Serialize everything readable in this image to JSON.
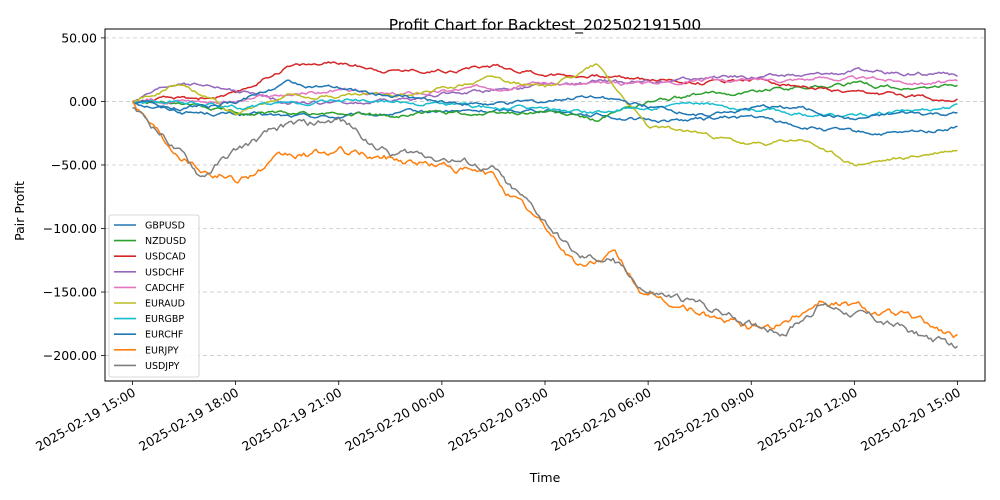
{
  "chart_data": {
    "type": "line",
    "title": "Profit Chart for Backtest_202502191500",
    "xlabel": "Time",
    "ylabel": "Pair Profit",
    "x_start": "2025-02-19 15:00",
    "x_end": "2025-02-20 15:00",
    "xlim": [
      "2025-02-19 14:12",
      "2025-02-20 15:48"
    ],
    "ylim": [
      -220,
      57
    ],
    "x_ticks": [
      "2025-02-19 15:00",
      "2025-02-19 18:00",
      "2025-02-19 21:00",
      "2025-02-20 00:00",
      "2025-02-20 03:00",
      "2025-02-20 06:00",
      "2025-02-20 09:00",
      "2025-02-20 12:00",
      "2025-02-20 15:00"
    ],
    "x_tick_labels": [
      "2025-02-19 15:00",
      "2025-02-19 18:00",
      "2025-02-19 21:00",
      "2025-02-20 00:00",
      "2025-02-20 03:00",
      "2025-02-20 06:00",
      "2025-02-20 09:00",
      "2025-02-20 12:00",
      "2025-02-20 15:00"
    ],
    "y_ticks": [
      50,
      0,
      -50,
      -100,
      -150,
      -200
    ],
    "y_tick_labels": [
      "50.00",
      "0.00",
      "−50.00",
      "−100.00",
      "−150.00",
      "−200.00"
    ],
    "grid": "horizontal dashed",
    "legend_position": "center-left",
    "series": [
      {
        "name": "GBPUSD",
        "color": "#1f77b4",
        "x": [
          "2025-02-19 15:00",
          "2025-02-19 16:30",
          "2025-02-19 18:00",
          "2025-02-19 19:30",
          "2025-02-19 21:00",
          "2025-02-19 22:30",
          "2025-02-20 00:00",
          "2025-02-20 01:30",
          "2025-02-20 03:00",
          "2025-02-20 04:30",
          "2025-02-20 06:00",
          "2025-02-20 07:30",
          "2025-02-20 09:00",
          "2025-02-20 10:30",
          "2025-02-20 12:00",
          "2025-02-20 13:30",
          "2025-02-20 15:00"
        ],
        "values": [
          0,
          -8,
          -10,
          -12,
          -12,
          -10,
          -8,
          -8,
          -6,
          -10,
          -15,
          -14,
          -12,
          -20,
          -25,
          -26,
          -20
        ]
      },
      {
        "name": "NZDUSD",
        "color": "#2ca02c",
        "x": [
          "2025-02-19 15:00",
          "2025-02-19 16:30",
          "2025-02-19 18:00",
          "2025-02-19 19:30",
          "2025-02-19 21:00",
          "2025-02-19 22:30",
          "2025-02-20 00:00",
          "2025-02-20 01:30",
          "2025-02-20 03:00",
          "2025-02-20 04:30",
          "2025-02-20 06:00",
          "2025-02-20 07:30",
          "2025-02-20 09:00",
          "2025-02-20 10:30",
          "2025-02-20 12:00",
          "2025-02-20 13:30",
          "2025-02-20 15:00"
        ],
        "values": [
          0,
          -4,
          -8,
          -10,
          -10,
          -12,
          -8,
          -10,
          -8,
          -15,
          0,
          5,
          8,
          12,
          14,
          10,
          12
        ]
      },
      {
        "name": "USDCAD",
        "color": "#d62728",
        "x": [
          "2025-02-19 15:00",
          "2025-02-19 16:30",
          "2025-02-19 18:00",
          "2025-02-19 19:30",
          "2025-02-19 21:00",
          "2025-02-19 22:30",
          "2025-02-20 00:00",
          "2025-02-20 01:30",
          "2025-02-20 03:00",
          "2025-02-20 04:30",
          "2025-02-20 06:00",
          "2025-02-20 07:30",
          "2025-02-20 09:00",
          "2025-02-20 10:30",
          "2025-02-20 12:00",
          "2025-02-20 13:30",
          "2025-02-20 15:00"
        ],
        "values": [
          0,
          2,
          5,
          28,
          30,
          25,
          25,
          28,
          22,
          20,
          18,
          15,
          18,
          12,
          5,
          5,
          2
        ]
      },
      {
        "name": "USDCHF",
        "color": "#9467bd",
        "x": [
          "2025-02-19 15:00",
          "2025-02-19 16:30",
          "2025-02-19 18:00",
          "2025-02-19 19:30",
          "2025-02-19 21:00",
          "2025-02-19 22:30",
          "2025-02-20 00:00",
          "2025-02-20 01:30",
          "2025-02-20 03:00",
          "2025-02-20 04:30",
          "2025-02-20 06:00",
          "2025-02-20 07:30",
          "2025-02-20 09:00",
          "2025-02-20 10:30",
          "2025-02-20 12:00",
          "2025-02-20 13:30",
          "2025-02-20 15:00"
        ],
        "values": [
          0,
          15,
          8,
          0,
          -2,
          0,
          5,
          10,
          12,
          15,
          15,
          18,
          20,
          20,
          24,
          22,
          20
        ]
      },
      {
        "name": "CADCHF",
        "color": "#e377c2",
        "x": [
          "2025-02-19 15:00",
          "2025-02-19 16:30",
          "2025-02-19 18:00",
          "2025-02-19 19:30",
          "2025-02-19 21:00",
          "2025-02-19 22:30",
          "2025-02-20 00:00",
          "2025-02-20 01:30",
          "2025-02-20 03:00",
          "2025-02-20 04:30",
          "2025-02-20 06:00",
          "2025-02-20 07:30",
          "2025-02-20 09:00",
          "2025-02-20 10:30",
          "2025-02-20 12:00",
          "2025-02-20 13:30",
          "2025-02-20 15:00"
        ],
        "values": [
          0,
          2,
          0,
          5,
          8,
          5,
          8,
          12,
          15,
          12,
          15,
          18,
          16,
          18,
          18,
          16,
          15
        ]
      },
      {
        "name": "EURAUD",
        "color": "#bcbd22",
        "x": [
          "2025-02-19 15:00",
          "2025-02-19 16:30",
          "2025-02-19 18:00",
          "2025-02-19 19:30",
          "2025-02-19 21:00",
          "2025-02-19 22:30",
          "2025-02-20 00:00",
          "2025-02-20 01:30",
          "2025-02-20 03:00",
          "2025-02-20 04:30",
          "2025-02-20 06:00",
          "2025-02-20 07:30",
          "2025-02-20 09:00",
          "2025-02-20 10:30",
          "2025-02-20 12:00",
          "2025-02-20 13:30",
          "2025-02-20 15:00"
        ],
        "values": [
          0,
          15,
          -10,
          5,
          5,
          5,
          10,
          20,
          10,
          30,
          -20,
          -25,
          -35,
          -30,
          -50,
          -45,
          -38
        ]
      },
      {
        "name": "EURGBP",
        "color": "#17becf",
        "x": [
          "2025-02-19 15:00",
          "2025-02-19 16:30",
          "2025-02-19 18:00",
          "2025-02-19 19:30",
          "2025-02-19 21:00",
          "2025-02-19 22:30",
          "2025-02-20 00:00",
          "2025-02-20 01:30",
          "2025-02-20 03:00",
          "2025-02-20 04:30",
          "2025-02-20 06:00",
          "2025-02-20 07:30",
          "2025-02-20 09:00",
          "2025-02-20 10:30",
          "2025-02-20 12:00",
          "2025-02-20 13:30",
          "2025-02-20 15:00"
        ],
        "values": [
          0,
          0,
          -5,
          -2,
          2,
          0,
          -2,
          -5,
          -6,
          -8,
          -5,
          -3,
          -5,
          -10,
          -12,
          -8,
          -3
        ]
      },
      {
        "name": "EURCHF",
        "color": "#1f77b4",
        "x": [
          "2025-02-19 15:00",
          "2025-02-19 16:30",
          "2025-02-19 18:00",
          "2025-02-19 19:30",
          "2025-02-19 21:00",
          "2025-02-19 22:30",
          "2025-02-20 00:00",
          "2025-02-20 01:30",
          "2025-02-20 03:00",
          "2025-02-20 04:30",
          "2025-02-20 06:00",
          "2025-02-20 07:30",
          "2025-02-20 09:00",
          "2025-02-20 10:30",
          "2025-02-20 12:00",
          "2025-02-20 13:30",
          "2025-02-20 15:00"
        ],
        "values": [
          0,
          -5,
          0,
          15,
          10,
          5,
          0,
          -2,
          0,
          5,
          -5,
          -10,
          -5,
          -5,
          -15,
          -10,
          -10
        ]
      },
      {
        "name": "EURJPY",
        "color": "#ff7f0e",
        "x": [
          "2025-02-19 15:00",
          "2025-02-19 16:00",
          "2025-02-19 17:00",
          "2025-02-19 18:00",
          "2025-02-19 19:30",
          "2025-02-19 21:00",
          "2025-02-19 22:30",
          "2025-02-20 00:00",
          "2025-02-20 01:30",
          "2025-02-20 03:00",
          "2025-02-20 04:00",
          "2025-02-20 05:00",
          "2025-02-20 06:00",
          "2025-02-20 07:30",
          "2025-02-20 09:00",
          "2025-02-20 10:00",
          "2025-02-20 11:00",
          "2025-02-20 12:00",
          "2025-02-20 13:30",
          "2025-02-20 15:00"
        ],
        "values": [
          0,
          -30,
          -50,
          -60,
          -45,
          -40,
          -45,
          -50,
          -60,
          -100,
          -130,
          -120,
          -155,
          -165,
          -180,
          -175,
          -155,
          -160,
          -170,
          -185
        ]
      },
      {
        "name": "USDJPY",
        "color": "#7f7f7f",
        "x": [
          "2025-02-19 15:00",
          "2025-02-19 16:00",
          "2025-02-19 17:00",
          "2025-02-19 18:00",
          "2025-02-19 19:30",
          "2025-02-19 21:00",
          "2025-02-19 22:30",
          "2025-02-20 00:00",
          "2025-02-20 01:30",
          "2025-02-20 03:00",
          "2025-02-20 04:00",
          "2025-02-20 05:00",
          "2025-02-20 06:00",
          "2025-02-20 07:30",
          "2025-02-20 09:00",
          "2025-02-20 10:00",
          "2025-02-20 11:00",
          "2025-02-20 12:00",
          "2025-02-20 13:30",
          "2025-02-20 15:00"
        ],
        "values": [
          -5,
          -30,
          -60,
          -40,
          -20,
          -15,
          -40,
          -42,
          -55,
          -95,
          -125,
          -125,
          -150,
          -160,
          -175,
          -180,
          -160,
          -165,
          -180,
          -195
        ]
      }
    ]
  }
}
